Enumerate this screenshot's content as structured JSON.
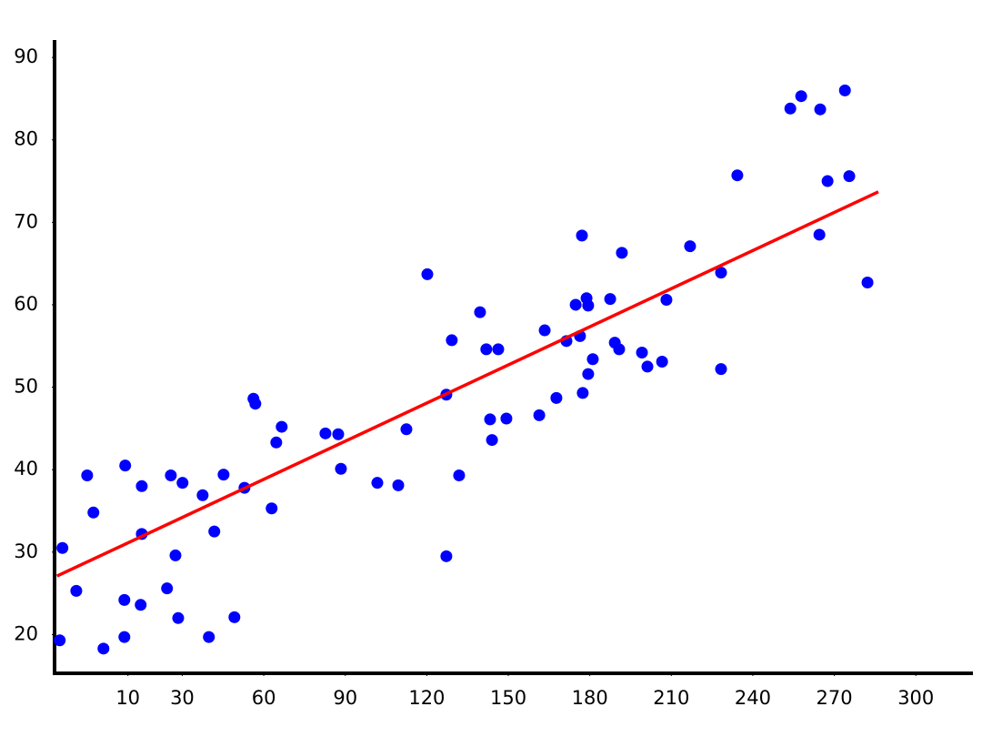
{
  "chart_data": {
    "type": "scatter",
    "xlim": [
      -17,
      321
    ],
    "ylim": [
      15.3,
      92
    ],
    "xticks": [
      10,
      30,
      60,
      90,
      120,
      150,
      180,
      210,
      240,
      270,
      300
    ],
    "yticks": [
      20,
      30,
      40,
      50,
      60,
      70,
      80,
      90
    ],
    "series": [
      {
        "color": "#0000ff",
        "x": [
          -15.1,
          -14.1,
          -9.0,
          -5.0,
          -2.7,
          1.0,
          8.7,
          9.0,
          8.7,
          14.7,
          15.1,
          15.1,
          24.4,
          25.8,
          27.5,
          28.5,
          30.1,
          37.5,
          39.8,
          41.8,
          45.2,
          49.2,
          52.9,
          56.2,
          56.9,
          62.9,
          64.6,
          66.6,
          82.7,
          87.4,
          88.4,
          101.8,
          109.5,
          112.5,
          120.2,
          127.2,
          127.2,
          129.2,
          131.9,
          139.6,
          141.9,
          143.3,
          144.0,
          146.3,
          149.3,
          161.4,
          163.4,
          167.7,
          171.4,
          174.8,
          176.4,
          177.1,
          177.4,
          178.8,
          179.4,
          179.4,
          181.1,
          187.5,
          189.2,
          190.8,
          191.8,
          199.2,
          201.2,
          206.6,
          208.2,
          216.9,
          228.3,
          228.3,
          234.3,
          253.8,
          257.8,
          264.5,
          264.8,
          267.5,
          273.9,
          275.5,
          282.2
        ],
        "values": [
          19.3,
          30.5,
          25.3,
          39.3,
          34.8,
          18.3,
          24.2,
          40.5,
          19.7,
          23.6,
          38.0,
          32.2,
          25.6,
          39.3,
          29.6,
          22.0,
          38.4,
          36.9,
          19.7,
          32.5,
          39.4,
          22.1,
          37.8,
          48.6,
          48.0,
          35.3,
          43.3,
          45.2,
          44.4,
          44.3,
          40.1,
          38.4,
          38.1,
          44.9,
          63.7,
          49.1,
          29.5,
          55.7,
          39.3,
          59.1,
          54.6,
          46.1,
          43.6,
          54.6,
          46.2,
          46.6,
          56.9,
          48.7,
          55.6,
          60.0,
          56.2,
          68.4,
          49.3,
          60.8,
          51.6,
          59.9,
          53.4,
          60.7,
          55.4,
          54.6,
          66.3,
          54.2,
          52.5,
          53.1,
          60.6,
          67.1,
          63.9,
          52.2,
          75.7,
          83.8,
          85.3,
          68.5,
          83.7,
          75.0,
          86.0,
          75.6,
          62.7
        ]
      }
    ],
    "trendline": {
      "color": "#ff0000",
      "x": [
        -16.1,
        286.2
      ],
      "values": [
        27.1,
        73.7
      ]
    }
  }
}
